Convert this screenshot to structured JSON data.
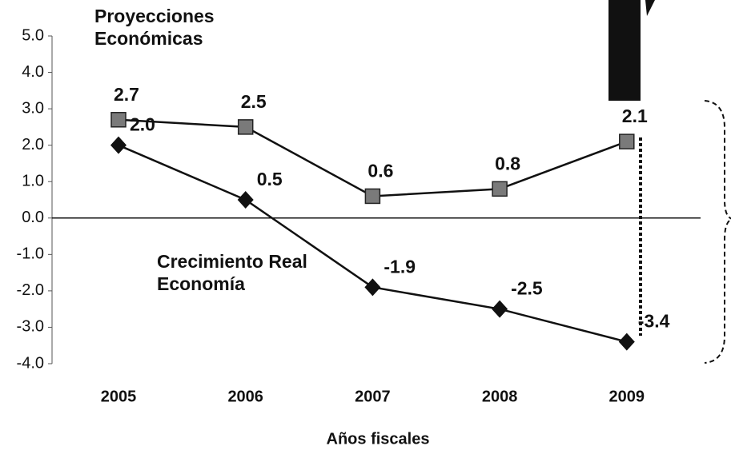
{
  "chart_data": {
    "type": "line",
    "x_label": "Años fiscales",
    "categories": [
      "2005",
      "2006",
      "2007",
      "2008",
      "2009"
    ],
    "series": [
      {
        "name": "Proyecciones Económicas",
        "color": "#7a7a7a",
        "marker": "square",
        "values": [
          2.7,
          2.5,
          0.6,
          0.8,
          2.1
        ],
        "value_labels": [
          "2.7",
          "2.5",
          "0.6",
          "0.8",
          "2.1"
        ]
      },
      {
        "name": "Crecimiento Real Economía",
        "color": "#111111",
        "marker": "diamond",
        "values": [
          2.0,
          0.5,
          -1.9,
          -2.5,
          -3.4
        ],
        "value_labels": [
          "2.0",
          "0.5",
          "-1.9",
          "-2.5",
          "-3.4"
        ]
      }
    ],
    "ylim": [
      -4,
      5
    ],
    "yticks": [
      {
        "value": -4,
        "label": "-4.0"
      },
      {
        "value": -3,
        "label": "-3.0"
      },
      {
        "value": -2,
        "label": "-2.0"
      },
      {
        "value": -1,
        "label": "-1.0"
      },
      {
        "value": 0,
        "label": "0.0"
      },
      {
        "value": 1,
        "label": "1.0"
      },
      {
        "value": 2,
        "label": "2.0"
      },
      {
        "value": 3,
        "label": "3.0"
      },
      {
        "value": 4,
        "label": "4.0"
      },
      {
        "value": 5,
        "label": "5.0"
      }
    ],
    "grid": false
  }
}
